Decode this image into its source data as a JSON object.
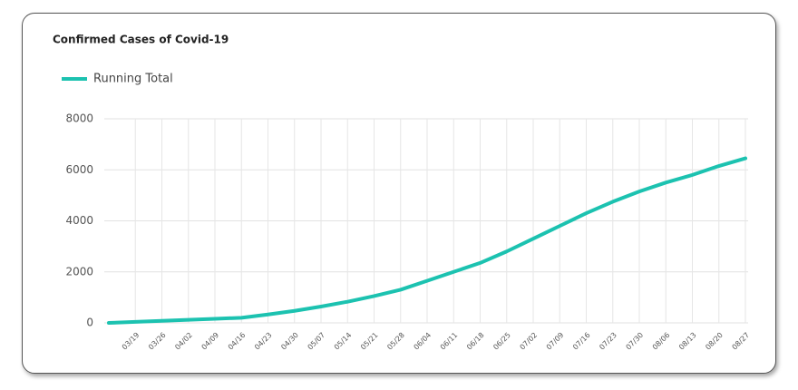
{
  "chart_data": {
    "type": "line",
    "title": "Confirmed Cases of Covid-19",
    "categories": [
      null,
      "03/19",
      "03/26",
      "04/02",
      "04/09",
      "04/16",
      "04/23",
      "04/30",
      "05/07",
      "05/14",
      "05/21",
      "05/28",
      "06/04",
      "06/11",
      "06/18",
      "06/25",
      "07/02",
      "07/09",
      "07/16",
      "07/23",
      "07/30",
      "08/06",
      "08/13",
      "08/20",
      "08/27"
    ],
    "series": [
      {
        "name": "Running Total",
        "color": "#1cc2b0",
        "values": [
          0,
          40,
          80,
          120,
          160,
          200,
          330,
          470,
          640,
          830,
          1050,
          1300,
          1650,
          2000,
          2350,
          2800,
          3300,
          3800,
          4300,
          4750,
          5150,
          5500,
          5800,
          6150,
          6450
        ]
      }
    ],
    "ylim": [
      0,
      8000
    ],
    "yticks": [
      0,
      2000,
      4000,
      6000,
      8000
    ],
    "grid": true
  }
}
